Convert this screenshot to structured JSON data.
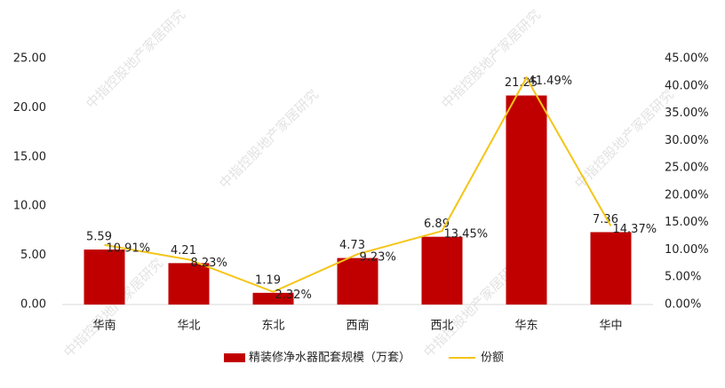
{
  "chart_data": {
    "type": "bar",
    "categories": [
      "华南",
      "华北",
      "东北",
      "西南",
      "西北",
      "华东",
      "华中"
    ],
    "series": [
      {
        "name": "精装修净水器配套规模（万套）",
        "type": "bar",
        "color": "#c00000",
        "values": [
          5.59,
          4.21,
          1.19,
          4.73,
          6.89,
          21.25,
          7.36
        ]
      },
      {
        "name": "份额",
        "type": "line",
        "axis": "y2",
        "color": "#f5c518",
        "values": [
          10.91,
          8.23,
          2.32,
          9.23,
          13.45,
          41.49,
          14.37
        ],
        "value_labels": [
          "10.91%",
          "8.23%",
          "2.32%",
          "9.23%",
          "13.45%",
          "41.49%",
          "14.37%"
        ]
      }
    ],
    "ylim": [
      0,
      25
    ],
    "yticks": [
      {
        "value": 0,
        "label": "0.00"
      },
      {
        "value": 5,
        "label": "5.00"
      },
      {
        "value": 10,
        "label": "10.00"
      },
      {
        "value": 15,
        "label": "15.00"
      },
      {
        "value": 20,
        "label": "20.00"
      },
      {
        "value": 25,
        "label": "25.00"
      }
    ],
    "y2lim": [
      0,
      45
    ],
    "y2ticks": [
      {
        "value": 0,
        "label": "0.00%"
      },
      {
        "value": 5,
        "label": "5.00%"
      },
      {
        "value": 10,
        "label": "10.00%"
      },
      {
        "value": 15,
        "label": "15.00%"
      },
      {
        "value": 20,
        "label": "20.00%"
      },
      {
        "value": 25,
        "label": "25.00%"
      },
      {
        "value": 30,
        "label": "30.00%"
      },
      {
        "value": 35,
        "label": "35.00%"
      },
      {
        "value": 40,
        "label": "40.00%"
      },
      {
        "value": 45,
        "label": "45.00%"
      }
    ],
    "watermark": "中指控股地产家居研究",
    "legend": "bottom"
  }
}
